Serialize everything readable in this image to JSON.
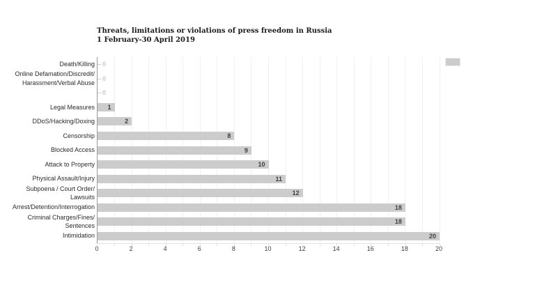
{
  "chart_data": {
    "type": "bar",
    "orientation": "horizontal",
    "title": "Threats, limitations or violations of press freedom in Russia",
    "subtitle": "1 February-30 April 2019",
    "categories": [
      "Death/Killing",
      "Online Defamation/Discredit/\nHarassment/Verbal Abuse",
      "",
      "Legal Measures",
      "DDoS/Hacking/Doxing",
      "Censorship",
      "Blocked Access",
      "Attack to Property",
      "Physical Assault/Injury",
      "Subpoena / Court Order/\nLawsuits",
      "Arrest/Detention/Interrogation",
      "Criminal Charges/Fines/\nSentences",
      "Intimidation"
    ],
    "values": [
      0,
      0,
      0,
      1,
      2,
      8,
      9,
      10,
      11,
      12,
      18,
      18,
      20
    ],
    "xlim": [
      0,
      20
    ],
    "xticks": [
      0,
      2,
      4,
      6,
      8,
      10,
      12,
      14,
      16,
      18,
      20
    ],
    "grid": "vertical minor gridlines every 1 unit",
    "legend": {
      "position": "top-right",
      "label": "",
      "swatch_color": "#cccccc"
    },
    "colors": {
      "bar": "#cccccc",
      "value_label": "#3d3d3d",
      "zero_label": "#c9c9c9",
      "gridline": "#f1f1f1",
      "axis_line": "#999999",
      "category_label": "#2b2b2b",
      "tick_label": "#3d3d3d",
      "title": "#1a1a1a"
    }
  }
}
